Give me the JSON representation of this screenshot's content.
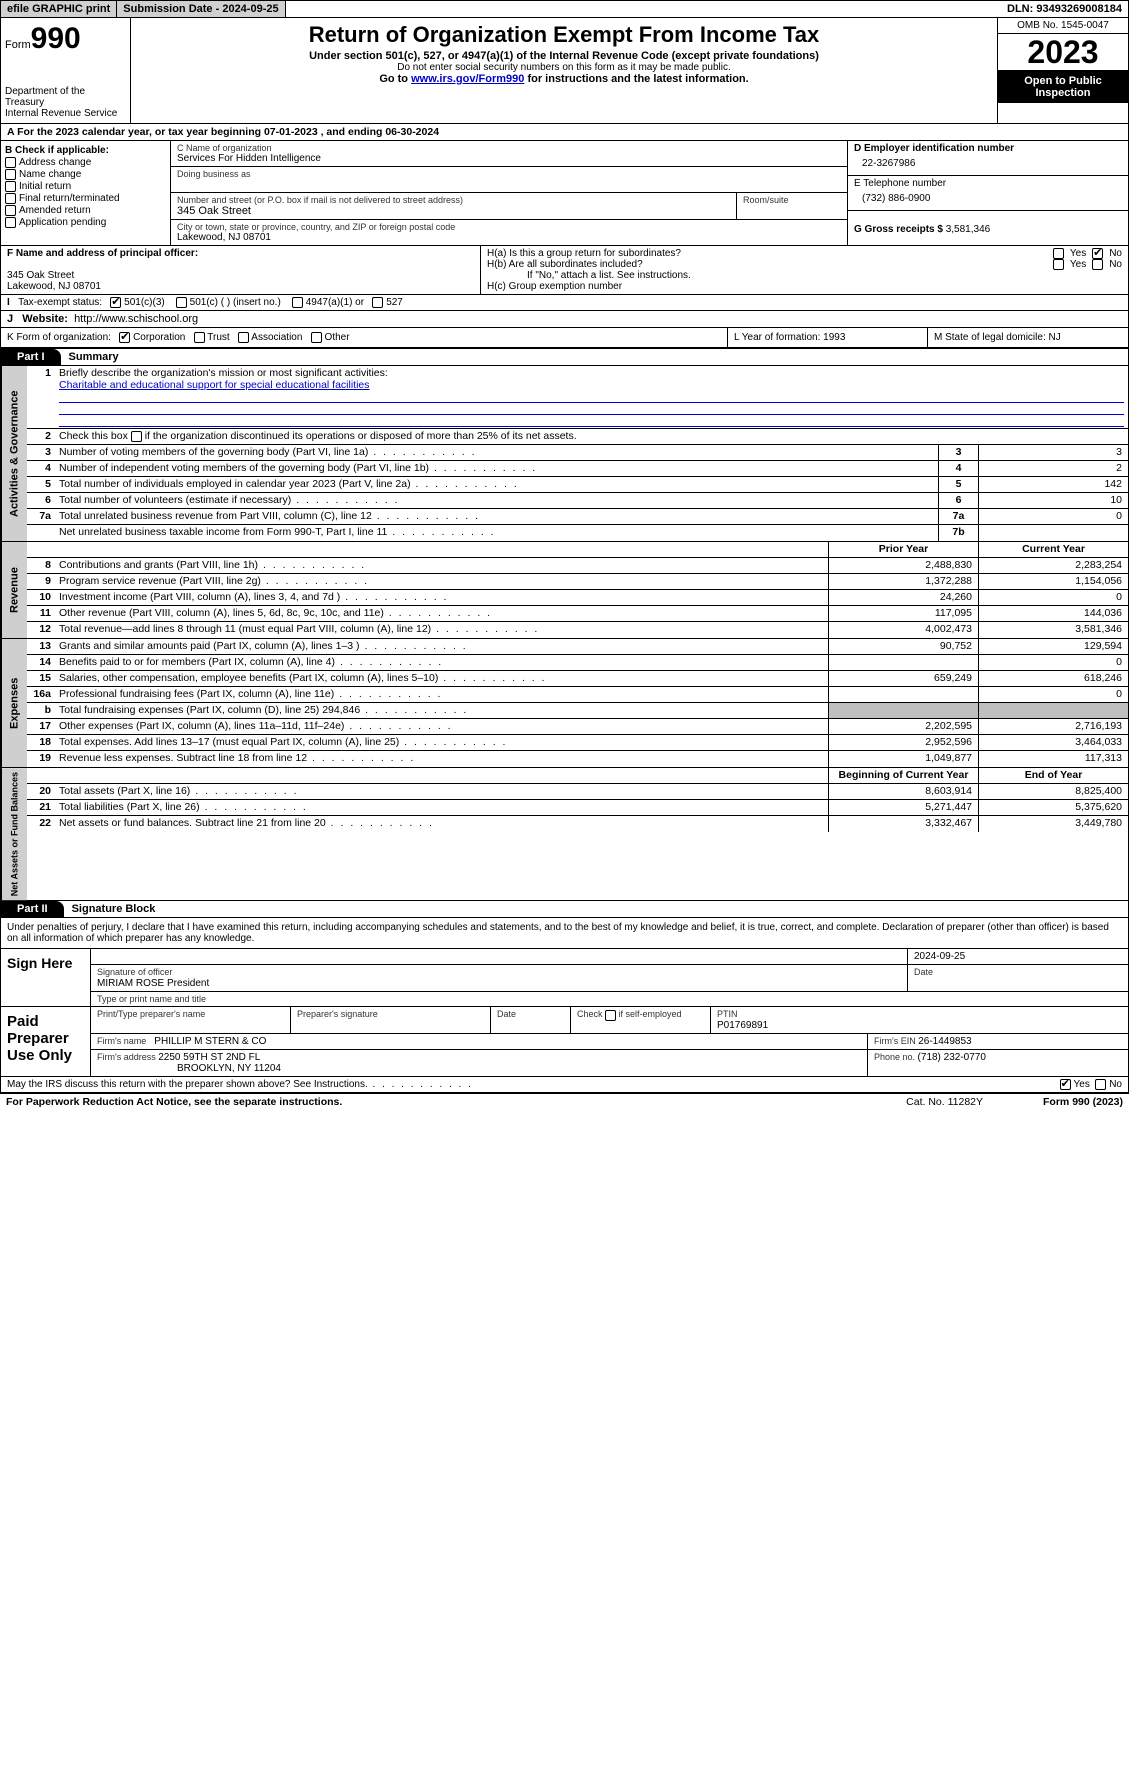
{
  "topbar": {
    "efile": "efile GRAPHIC print",
    "subdate_label": "Submission Date - ",
    "subdate": "2024-09-25",
    "dln_label": "DLN: ",
    "dln": "93493269008184"
  },
  "hdr": {
    "form_label": "Form",
    "form_no": "990",
    "title": "Return of Organization Exempt From Income Tax",
    "sub": "Under section 501(c), 527, or 4947(a)(1) of the Internal Revenue Code (except private foundations)",
    "sub2": "Do not enter social security numbers on this form as it may be made public.",
    "sub3a": "Go to ",
    "sub3link": "www.irs.gov/Form990",
    "sub3b": " for instructions and the latest information.",
    "dept": "Department of the Treasury",
    "irs": "Internal Revenue Service",
    "omb": "OMB No. 1545-0047",
    "year": "2023",
    "open": "Open to Public Inspection"
  },
  "A": {
    "text": "A For the 2023 calendar year, or tax year beginning 07-01-2023   , and ending 06-30-2024"
  },
  "B": {
    "label": "B Check if applicable:",
    "items": [
      "Address change",
      "Name change",
      "Initial return",
      "Final return/terminated",
      "Amended return",
      "Application pending"
    ]
  },
  "C": {
    "name_lbl": "C Name of organization",
    "name": "Services For Hidden Intelligence",
    "dba_lbl": "Doing business as",
    "street_lbl": "Number and street (or P.O. box if mail is not delivered to street address)",
    "room_lbl": "Room/suite",
    "street": "345 Oak Street",
    "city_lbl": "City or town, state or province, country, and ZIP or foreign postal code",
    "city": "Lakewood, NJ  08701"
  },
  "D": {
    "lbl": "D Employer identification number",
    "val": "22-3267986"
  },
  "E": {
    "lbl": "E Telephone number",
    "val": "(732) 886-0900"
  },
  "G": {
    "lbl": "G Gross receipts $ ",
    "val": "3,581,346"
  },
  "F": {
    "lbl": "F  Name and address of principal officer:",
    "line1": "345 Oak Street",
    "line2": "Lakewood, NJ  08701"
  },
  "H": {
    "a": "H(a)  Is this a group return for subordinates?",
    "b": "H(b)  Are all subordinates included?",
    "bnote": "If \"No,\" attach a list. See instructions.",
    "c": "H(c)  Group exemption number",
    "yes": "Yes",
    "no": "No"
  },
  "I": {
    "lbl": "Tax-exempt status:",
    "o1": "501(c)(3)",
    "o2": "501(c) (  ) (insert no.)",
    "o3": "4947(a)(1) or",
    "o4": "527"
  },
  "J": {
    "lbl": "Website:",
    "val": "http://www.schischool.org"
  },
  "K": {
    "lbl": "K Form of organization:",
    "o": [
      "Corporation",
      "Trust",
      "Association",
      "Other"
    ]
  },
  "L": {
    "lbl": "L Year of formation: ",
    "val": "1993"
  },
  "M": {
    "lbl": "M State of legal domicile: ",
    "val": "NJ"
  },
  "part1": {
    "bar": "Part I",
    "title": "Summary",
    "q1": "Briefly describe the organization's mission or most significant activities:",
    "q1v": "Charitable and educational support for special educational facilities",
    "q2": "Check this box          if the organization discontinued its operations or disposed of more than 25% of its net assets.",
    "rows_gov": [
      {
        "n": "3",
        "d": "Number of voting members of the governing body (Part VI, line 1a)",
        "bx": "3",
        "v": "3"
      },
      {
        "n": "4",
        "d": "Number of independent voting members of the governing body (Part VI, line 1b)",
        "bx": "4",
        "v": "2"
      },
      {
        "n": "5",
        "d": "Total number of individuals employed in calendar year 2023 (Part V, line 2a)",
        "bx": "5",
        "v": "142"
      },
      {
        "n": "6",
        "d": "Total number of volunteers (estimate if necessary)",
        "bx": "6",
        "v": "10"
      },
      {
        "n": "7a",
        "d": "Total unrelated business revenue from Part VIII, column (C), line 12",
        "bx": "7a",
        "v": "0"
      },
      {
        "n": "",
        "d": "Net unrelated business taxable income from Form 990-T, Part I, line 11",
        "bx": "7b",
        "v": ""
      }
    ],
    "hd2": {
      "py": "Prior Year",
      "cy": "Current Year"
    },
    "rows_rev": [
      {
        "n": "8",
        "d": "Contributions and grants (Part VIII, line 1h)",
        "py": "2,488,830",
        "cy": "2,283,254"
      },
      {
        "n": "9",
        "d": "Program service revenue (Part VIII, line 2g)",
        "py": "1,372,288",
        "cy": "1,154,056"
      },
      {
        "n": "10",
        "d": "Investment income (Part VIII, column (A), lines 3, 4, and 7d )",
        "py": "24,260",
        "cy": "0"
      },
      {
        "n": "11",
        "d": "Other revenue (Part VIII, column (A), lines 5, 6d, 8c, 9c, 10c, and 11e)",
        "py": "117,095",
        "cy": "144,036"
      },
      {
        "n": "12",
        "d": "Total revenue—add lines 8 through 11 (must equal Part VIII, column (A), line 12)",
        "py": "4,002,473",
        "cy": "3,581,346"
      }
    ],
    "rows_exp": [
      {
        "n": "13",
        "d": "Grants and similar amounts paid (Part IX, column (A), lines 1–3 )",
        "py": "90,752",
        "cy": "129,594"
      },
      {
        "n": "14",
        "d": "Benefits paid to or for members (Part IX, column (A), line 4)",
        "py": "",
        "cy": "0"
      },
      {
        "n": "15",
        "d": "Salaries, other compensation, employee benefits (Part IX, column (A), lines 5–10)",
        "py": "659,249",
        "cy": "618,246"
      },
      {
        "n": "16a",
        "d": "Professional fundraising fees (Part IX, column (A), line 11e)",
        "py": "",
        "cy": "0"
      },
      {
        "n": "b",
        "d": "Total fundraising expenses (Part IX, column (D), line 25) 294,846",
        "py": "GREY",
        "cy": "GREY"
      },
      {
        "n": "17",
        "d": "Other expenses (Part IX, column (A), lines 11a–11d, 11f–24e)",
        "py": "2,202,595",
        "cy": "2,716,193"
      },
      {
        "n": "18",
        "d": "Total expenses. Add lines 13–17 (must equal Part IX, column (A), line 25)",
        "py": "2,952,596",
        "cy": "3,464,033"
      },
      {
        "n": "19",
        "d": "Revenue less expenses. Subtract line 18 from line 12",
        "py": "1,049,877",
        "cy": "117,313"
      }
    ],
    "hd3": {
      "py": "Beginning of Current Year",
      "cy": "End of Year"
    },
    "rows_na": [
      {
        "n": "20",
        "d": "Total assets (Part X, line 16)",
        "py": "8,603,914",
        "cy": "8,825,400"
      },
      {
        "n": "21",
        "d": "Total liabilities (Part X, line 26)",
        "py": "5,271,447",
        "cy": "5,375,620"
      },
      {
        "n": "22",
        "d": "Net assets or fund balances. Subtract line 21 from line 20",
        "py": "3,332,467",
        "cy": "3,449,780"
      }
    ],
    "side": {
      "gov": "Activities & Governance",
      "rev": "Revenue",
      "exp": "Expenses",
      "na": "Net Assets or Fund Balances"
    }
  },
  "part2": {
    "bar": "Part II",
    "title": "Signature Block",
    "decl": "Under penalties of perjury, I declare that I have examined this return, including accompanying schedules and statements, and to the best of my knowledge and belief, it is true, correct, and complete. Declaration of preparer (other than officer) is based on all information of which preparer has any knowledge.",
    "sign_here": "Sign Here",
    "sig_officer": "Signature of officer",
    "sig_date": "Date",
    "sig_date_v": "2024-09-25",
    "officer": "MIRIAM ROSE President",
    "typeprint": "Type or print name and title",
    "paid": "Paid Preparer Use Only",
    "pt_name_lbl": "Print/Type preparer's name",
    "pt_sig_lbl": "Preparer's signature",
    "pt_date_lbl": "Date",
    "pt_self": "Check         if self-employed",
    "ptin_lbl": "PTIN",
    "ptin": "P01769891",
    "firm_name_lbl": "Firm's name   ",
    "firm_name": "PHILLIP M STERN & CO",
    "firm_ein_lbl": "Firm's EIN ",
    "firm_ein": "26-1449853",
    "firm_addr_lbl": "Firm's address ",
    "firm_addr1": "2250 59TH ST 2ND FL",
    "firm_addr2": "BROOKLYN, NY  11204",
    "phone_lbl": "Phone no. ",
    "phone": "(718) 232-0770",
    "discuss": "May the IRS discuss this return with the preparer shown above? See Instructions."
  },
  "foot": {
    "pra": "For Paperwork Reduction Act Notice, see the separate instructions.",
    "cat": "Cat. No. 11282Y",
    "form": "Form 990 (2023)"
  }
}
